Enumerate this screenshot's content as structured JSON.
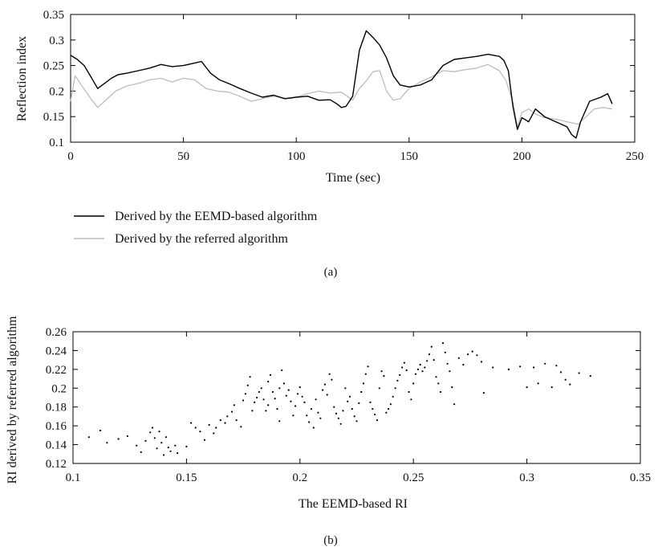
{
  "chart_data": [
    {
      "type": "line",
      "panel_label": "(a)",
      "xlabel": "Time (sec)",
      "ylabel": "Reflection index",
      "xlim": [
        0,
        250
      ],
      "ylim": [
        0.1,
        0.35
      ],
      "xticks": [
        0,
        50,
        100,
        150,
        200,
        250
      ],
      "yticks": [
        0.1,
        0.15,
        0.2,
        0.25,
        0.3,
        0.35
      ],
      "xtick_labels": [
        "0",
        "50",
        "100",
        "150",
        "200",
        "250"
      ],
      "ytick_labels": [
        "0.1",
        "0.15",
        "0.2",
        "0.25",
        "0.3",
        "0.35"
      ],
      "grid": false,
      "legend_position": "below",
      "series": [
        {
          "name": "Derived by the EEMD-based algorithm",
          "color": "#000000",
          "x": [
            0,
            3,
            6,
            9,
            12,
            15,
            18,
            21,
            25,
            30,
            35,
            40,
            45,
            50,
            55,
            58,
            62,
            66,
            70,
            75,
            80,
            85,
            90,
            95,
            100,
            105,
            110,
            115,
            118,
            120,
            122,
            125,
            128,
            131,
            134,
            137,
            140,
            143,
            146,
            150,
            155,
            160,
            165,
            170,
            175,
            180,
            185,
            190,
            192,
            194,
            196,
            198,
            200,
            203,
            206,
            210,
            215,
            220,
            222,
            224,
            226,
            230,
            235,
            238,
            240
          ],
          "y": [
            0.27,
            0.262,
            0.25,
            0.228,
            0.205,
            0.215,
            0.225,
            0.232,
            0.235,
            0.24,
            0.245,
            0.252,
            0.248,
            0.25,
            0.255,
            0.258,
            0.235,
            0.222,
            0.215,
            0.205,
            0.196,
            0.188,
            0.192,
            0.185,
            0.188,
            0.19,
            0.182,
            0.183,
            0.175,
            0.168,
            0.17,
            0.19,
            0.28,
            0.318,
            0.305,
            0.29,
            0.265,
            0.23,
            0.212,
            0.208,
            0.212,
            0.222,
            0.25,
            0.262,
            0.265,
            0.268,
            0.272,
            0.268,
            0.26,
            0.24,
            0.17,
            0.125,
            0.148,
            0.14,
            0.165,
            0.15,
            0.14,
            0.13,
            0.115,
            0.108,
            0.14,
            0.18,
            0.188,
            0.195,
            0.175
          ]
        },
        {
          "name": "Derived by the referred algorithm",
          "color": "#bdbdbd",
          "x": [
            0,
            2,
            5,
            9,
            12,
            15,
            20,
            25,
            30,
            35,
            40,
            45,
            50,
            55,
            60,
            65,
            70,
            75,
            80,
            85,
            90,
            95,
            100,
            105,
            110,
            115,
            120,
            125,
            128,
            131,
            134,
            137,
            140,
            143,
            146,
            150,
            155,
            160,
            165,
            170,
            175,
            180,
            185,
            190,
            193,
            196,
            198,
            200,
            203,
            206,
            210,
            215,
            220,
            225,
            228,
            232,
            236,
            240
          ],
          "y": [
            0.18,
            0.23,
            0.21,
            0.185,
            0.168,
            0.18,
            0.2,
            0.21,
            0.215,
            0.222,
            0.225,
            0.218,
            0.225,
            0.222,
            0.205,
            0.2,
            0.198,
            0.19,
            0.18,
            0.185,
            0.19,
            0.186,
            0.188,
            0.195,
            0.2,
            0.196,
            0.198,
            0.182,
            0.205,
            0.22,
            0.238,
            0.24,
            0.2,
            0.182,
            0.185,
            0.205,
            0.218,
            0.228,
            0.24,
            0.238,
            0.242,
            0.245,
            0.252,
            0.24,
            0.22,
            0.178,
            0.13,
            0.158,
            0.165,
            0.155,
            0.148,
            0.145,
            0.14,
            0.135,
            0.148,
            0.165,
            0.168,
            0.165
          ]
        }
      ]
    },
    {
      "type": "scatter",
      "panel_label": "(b)",
      "xlabel": "The EEMD-based RI",
      "ylabel": "RI derived by referred algorithm",
      "xlim": [
        0.1,
        0.35
      ],
      "ylim": [
        0.12,
        0.26
      ],
      "xticks": [
        0.1,
        0.15,
        0.2,
        0.25,
        0.3,
        0.35
      ],
      "yticks": [
        0.12,
        0.14,
        0.16,
        0.18,
        0.2,
        0.22,
        0.24,
        0.26
      ],
      "xtick_labels": [
        "0.1",
        "0.15",
        "0.2",
        "0.25",
        "0.3",
        "0.35"
      ],
      "ytick_labels": [
        "0.12",
        "0.14",
        "0.16",
        "0.18",
        "0.2",
        "0.22",
        "0.24",
        "0.26"
      ],
      "grid": false,
      "marker_color": "#000000",
      "points": [
        [
          0.107,
          0.148
        ],
        [
          0.112,
          0.155
        ],
        [
          0.115,
          0.142
        ],
        [
          0.12,
          0.146
        ],
        [
          0.124,
          0.149
        ],
        [
          0.128,
          0.139
        ],
        [
          0.13,
          0.132
        ],
        [
          0.132,
          0.144
        ],
        [
          0.134,
          0.153
        ],
        [
          0.135,
          0.158
        ],
        [
          0.136,
          0.147
        ],
        [
          0.137,
          0.136
        ],
        [
          0.138,
          0.154
        ],
        [
          0.139,
          0.142
        ],
        [
          0.14,
          0.129
        ],
        [
          0.141,
          0.148
        ],
        [
          0.142,
          0.137
        ],
        [
          0.143,
          0.133
        ],
        [
          0.145,
          0.139
        ],
        [
          0.146,
          0.131
        ],
        [
          0.15,
          0.138
        ],
        [
          0.152,
          0.163
        ],
        [
          0.154,
          0.158
        ],
        [
          0.156,
          0.154
        ],
        [
          0.158,
          0.145
        ],
        [
          0.16,
          0.161
        ],
        [
          0.162,
          0.152
        ],
        [
          0.163,
          0.158
        ],
        [
          0.165,
          0.166
        ],
        [
          0.167,
          0.163
        ],
        [
          0.168,
          0.17
        ],
        [
          0.17,
          0.175
        ],
        [
          0.171,
          0.182
        ],
        [
          0.172,
          0.166
        ],
        [
          0.174,
          0.159
        ],
        [
          0.175,
          0.187
        ],
        [
          0.176,
          0.194
        ],
        [
          0.177,
          0.203
        ],
        [
          0.178,
          0.212
        ],
        [
          0.179,
          0.176
        ],
        [
          0.18,
          0.185
        ],
        [
          0.181,
          0.19
        ],
        [
          0.182,
          0.196
        ],
        [
          0.183,
          0.2
        ],
        [
          0.184,
          0.188
        ],
        [
          0.185,
          0.176
        ],
        [
          0.186,
          0.182
        ],
        [
          0.186,
          0.207
        ],
        [
          0.187,
          0.214
        ],
        [
          0.188,
          0.196
        ],
        [
          0.189,
          0.189
        ],
        [
          0.19,
          0.178
        ],
        [
          0.191,
          0.165
        ],
        [
          0.191,
          0.2
        ],
        [
          0.192,
          0.219
        ],
        [
          0.193,
          0.205
        ],
        [
          0.194,
          0.192
        ],
        [
          0.195,
          0.198
        ],
        [
          0.196,
          0.186
        ],
        [
          0.197,
          0.171
        ],
        [
          0.198,
          0.181
        ],
        [
          0.199,
          0.194
        ],
        [
          0.2,
          0.201
        ],
        [
          0.201,
          0.191
        ],
        [
          0.202,
          0.185
        ],
        [
          0.203,
          0.171
        ],
        [
          0.204,
          0.164
        ],
        [
          0.205,
          0.178
        ],
        [
          0.206,
          0.158
        ],
        [
          0.207,
          0.188
        ],
        [
          0.208,
          0.174
        ],
        [
          0.209,
          0.168
        ],
        [
          0.21,
          0.198
        ],
        [
          0.211,
          0.204
        ],
        [
          0.212,
          0.193
        ],
        [
          0.213,
          0.215
        ],
        [
          0.214,
          0.209
        ],
        [
          0.215,
          0.18
        ],
        [
          0.216,
          0.173
        ],
        [
          0.217,
          0.168
        ],
        [
          0.218,
          0.162
        ],
        [
          0.219,
          0.176
        ],
        [
          0.22,
          0.2
        ],
        [
          0.221,
          0.186
        ],
        [
          0.222,
          0.191
        ],
        [
          0.223,
          0.178
        ],
        [
          0.224,
          0.17
        ],
        [
          0.225,
          0.165
        ],
        [
          0.226,
          0.184
        ],
        [
          0.227,
          0.196
        ],
        [
          0.228,
          0.205
        ],
        [
          0.229,
          0.215
        ],
        [
          0.23,
          0.223
        ],
        [
          0.231,
          0.185
        ],
        [
          0.232,
          0.178
        ],
        [
          0.233,
          0.172
        ],
        [
          0.234,
          0.166
        ],
        [
          0.235,
          0.2
        ],
        [
          0.236,
          0.218
        ],
        [
          0.237,
          0.213
        ],
        [
          0.238,
          0.174
        ],
        [
          0.239,
          0.178
        ],
        [
          0.24,
          0.183
        ],
        [
          0.241,
          0.191
        ],
        [
          0.242,
          0.2
        ],
        [
          0.243,
          0.208
        ],
        [
          0.244,
          0.214
        ],
        [
          0.245,
          0.222
        ],
        [
          0.246,
          0.227
        ],
        [
          0.247,
          0.219
        ],
        [
          0.248,
          0.196
        ],
        [
          0.249,
          0.188
        ],
        [
          0.25,
          0.205
        ],
        [
          0.251,
          0.215
        ],
        [
          0.252,
          0.22
        ],
        [
          0.253,
          0.225
        ],
        [
          0.254,
          0.218
        ],
        [
          0.255,
          0.222
        ],
        [
          0.256,
          0.229
        ],
        [
          0.257,
          0.236
        ],
        [
          0.258,
          0.244
        ],
        [
          0.259,
          0.23
        ],
        [
          0.26,
          0.212
        ],
        [
          0.261,
          0.205
        ],
        [
          0.262,
          0.196
        ],
        [
          0.263,
          0.248
        ],
        [
          0.264,
          0.238
        ],
        [
          0.265,
          0.226
        ],
        [
          0.266,
          0.218
        ],
        [
          0.267,
          0.201
        ],
        [
          0.268,
          0.183
        ],
        [
          0.27,
          0.232
        ],
        [
          0.272,
          0.225
        ],
        [
          0.274,
          0.236
        ],
        [
          0.276,
          0.239
        ],
        [
          0.278,
          0.235
        ],
        [
          0.28,
          0.228
        ],
        [
          0.281,
          0.195
        ],
        [
          0.285,
          0.222
        ],
        [
          0.292,
          0.22
        ],
        [
          0.297,
          0.223
        ],
        [
          0.3,
          0.201
        ],
        [
          0.303,
          0.222
        ],
        [
          0.305,
          0.205
        ],
        [
          0.308,
          0.226
        ],
        [
          0.311,
          0.201
        ],
        [
          0.313,
          0.224
        ],
        [
          0.315,
          0.217
        ],
        [
          0.317,
          0.209
        ],
        [
          0.319,
          0.204
        ],
        [
          0.323,
          0.216
        ],
        [
          0.328,
          0.213
        ]
      ]
    }
  ]
}
